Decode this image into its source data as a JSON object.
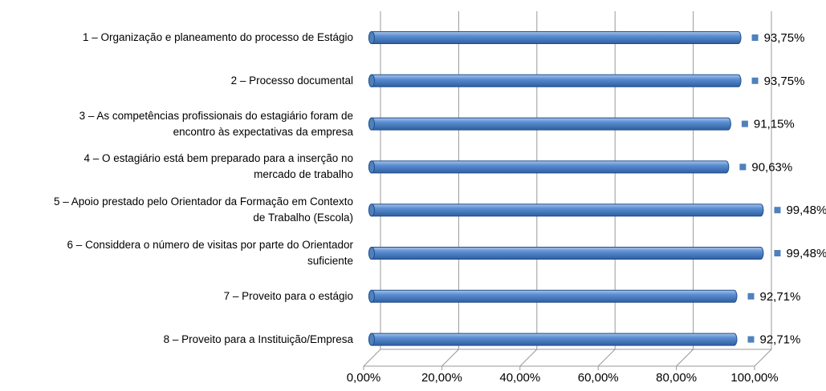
{
  "chart_data": {
    "type": "bar",
    "orientation": "horizontal",
    "categories": [
      "1 – Organização e planeamento do processo de Estágio",
      "2 – Processo documental",
      "3 – As competências profissionais do estagiário foram de\nencontro às expectativas da empresa",
      "4 – O estagiário está bem preparado para a inserção no\nmercado de trabalho",
      "5 – Apoio prestado pelo Orientador da Formação em Contexto\nde Trabalho (Escola)",
      "6 – Considdera o número de visitas por parte do Orientador\nsuficiente",
      "7 – Proveito para o estágio",
      "8 – Proveito para a Instituição/Empresa"
    ],
    "values": [
      93.75,
      93.75,
      91.15,
      90.63,
      99.48,
      99.48,
      92.71,
      92.71
    ],
    "value_labels": [
      "93,75%",
      "93,75%",
      "91,15%",
      "90,63%",
      "99,48%",
      "99,48%",
      "92,71%",
      "92,71%"
    ],
    "color": "#4f81bd",
    "xlim": [
      0,
      100
    ],
    "xticks": [
      {
        "value": 0,
        "label": "0,00%"
      },
      {
        "value": 20,
        "label": "20,00%"
      },
      {
        "value": 40,
        "label": "40,00%"
      },
      {
        "value": 60,
        "label": "60,00%"
      },
      {
        "value": 80,
        "label": "80,00%"
      },
      {
        "value": 100,
        "label": "100,00%"
      }
    ],
    "grid": true
  }
}
